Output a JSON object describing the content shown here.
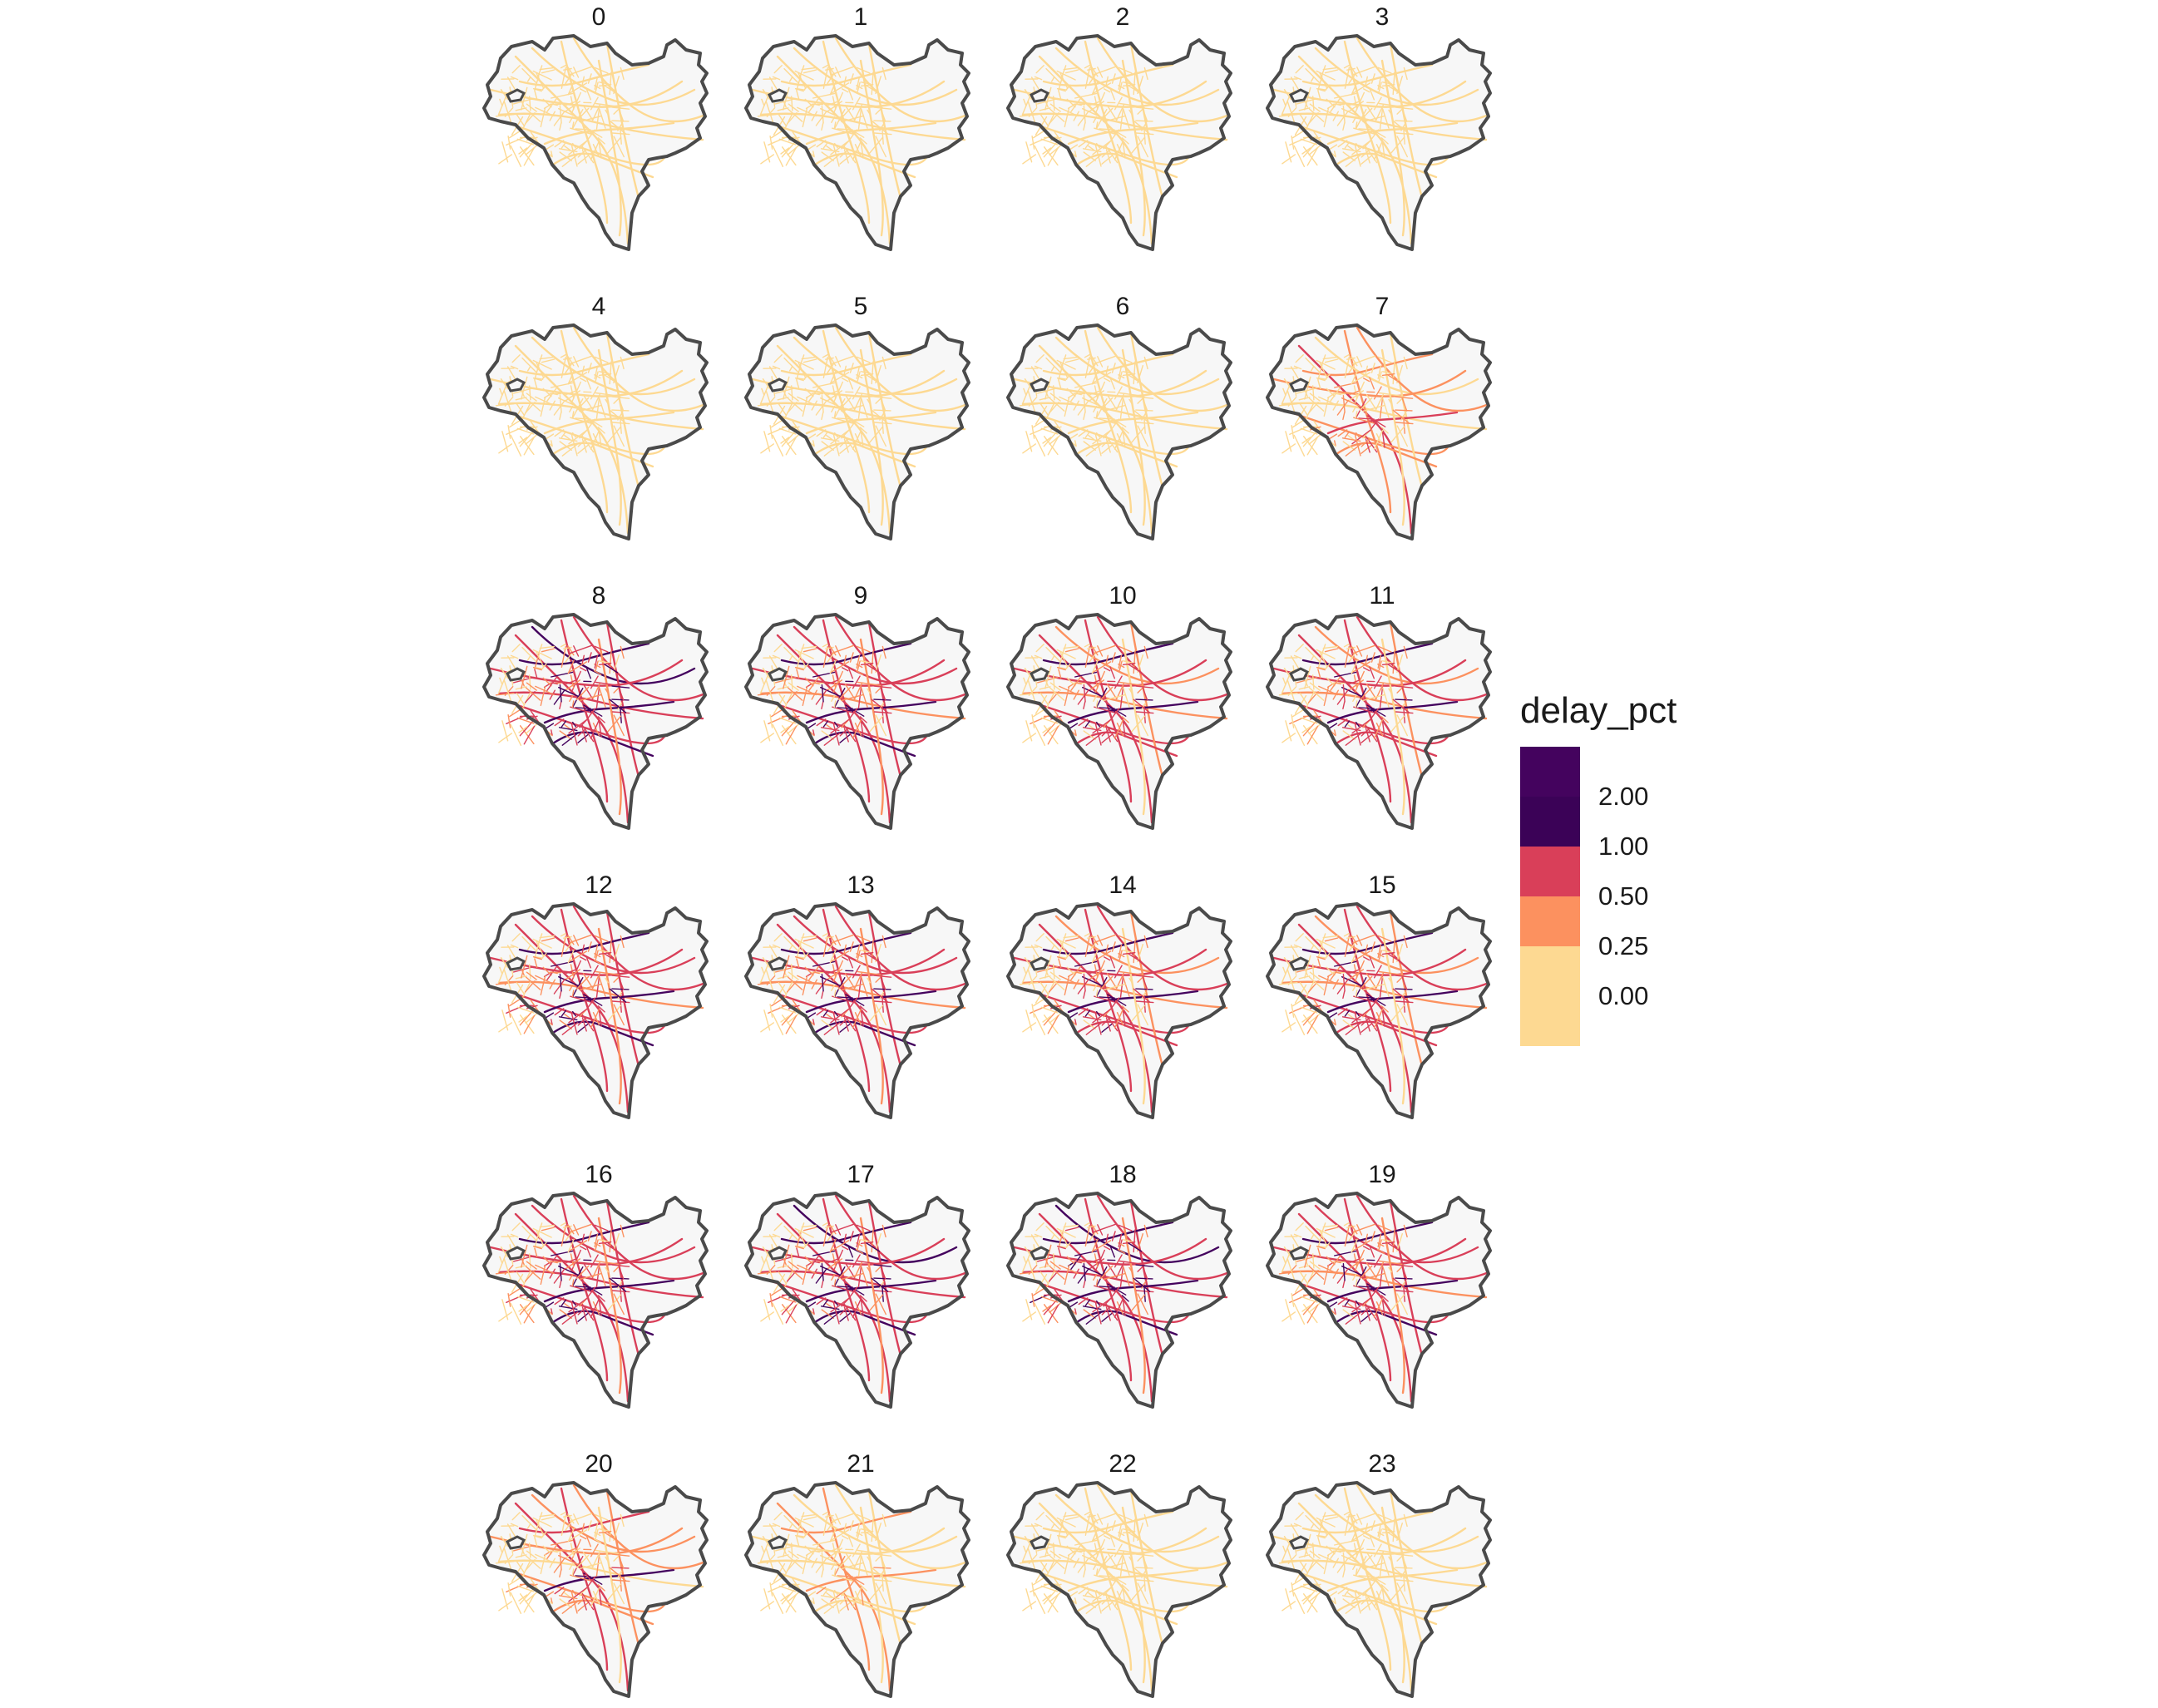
{
  "figure": {
    "facet_labels": [
      "0",
      "1",
      "2",
      "3",
      "4",
      "5",
      "6",
      "7",
      "8",
      "9",
      "10",
      "11",
      "12",
      "13",
      "14",
      "15",
      "16",
      "17",
      "18",
      "19",
      "20",
      "21",
      "22",
      "23"
    ],
    "facet_intensity": [
      0.15,
      0.12,
      0.1,
      0.08,
      0.06,
      0.06,
      0.1,
      0.45,
      0.95,
      0.75,
      0.7,
      0.7,
      0.8,
      0.75,
      0.72,
      0.7,
      0.85,
      0.95,
      1.0,
      0.75,
      0.5,
      0.3,
      0.2,
      0.15
    ],
    "colors": {
      "outline": "#4a4a4a",
      "fill": "#f7f7f7",
      "bin_0": "#fdd992",
      "bin_1": "#fc915f",
      "bin_2": "#d93f59",
      "bin_3": "#44035e",
      "bin_4": "#3b0257"
    }
  },
  "legend": {
    "title": "delay_pct",
    "ticks": [
      "2.00",
      "1.00",
      "0.50",
      "0.25",
      "0.00"
    ]
  }
}
